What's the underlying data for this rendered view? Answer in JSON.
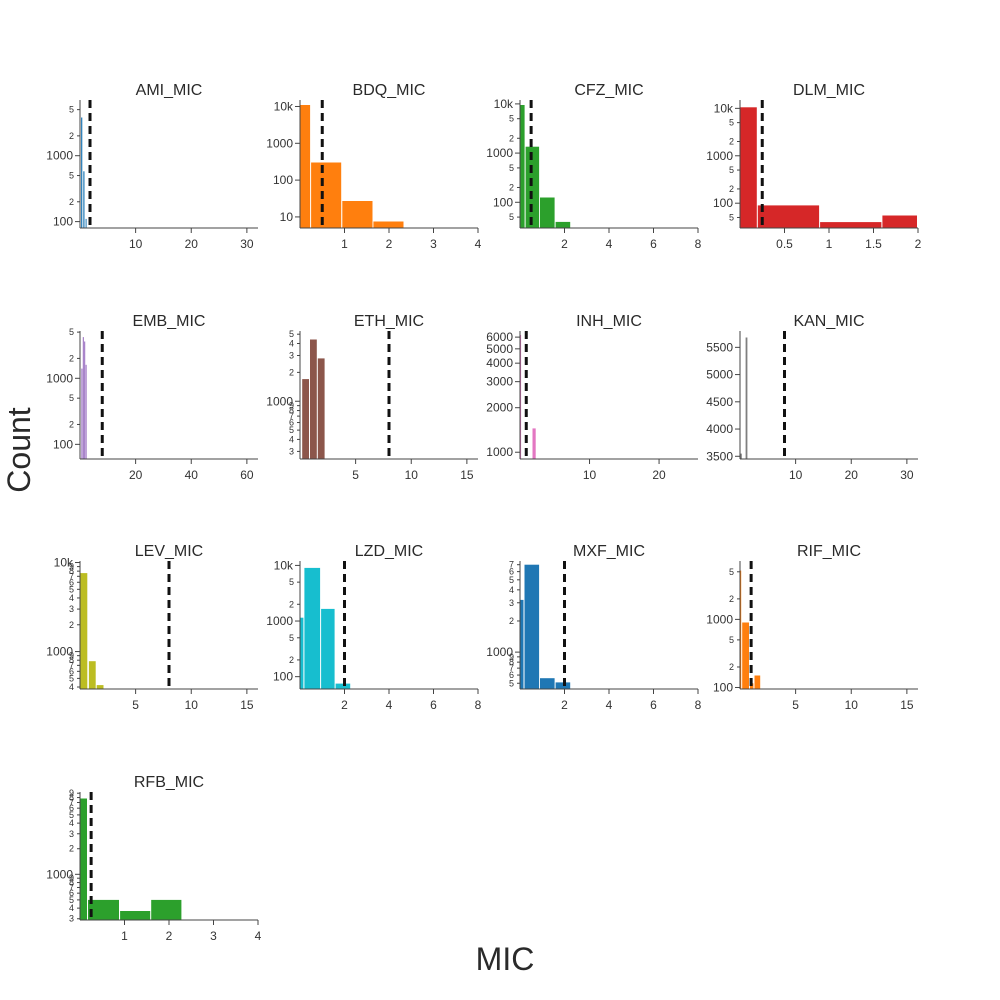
{
  "figure": {
    "xlabel": "MIC",
    "ylabel": "Count"
  },
  "chart_data": [
    {
      "type": "bar",
      "title": "AMI_MIC",
      "color": "#1f77b4",
      "ylog": true,
      "xlim": [
        0,
        32
      ],
      "xticks": [
        10,
        20,
        30
      ],
      "ylim": [
        80,
        7000
      ],
      "yticks": [
        {
          "v": 100,
          "t": "100",
          "major": true
        },
        {
          "v": 200,
          "t": "2"
        },
        {
          "v": 500,
          "t": "5"
        },
        {
          "v": 1000,
          "t": "1000",
          "major": true
        },
        {
          "v": 2000,
          "t": "2"
        },
        {
          "v": 5000,
          "t": "5"
        }
      ],
      "bins": [
        [
          0.2,
          0.6,
          3800
        ],
        [
          0.6,
          1.0,
          580
        ],
        [
          1.0,
          1.3,
          110
        ]
      ],
      "threshold": 1.8
    },
    {
      "type": "bar",
      "title": "BDQ_MIC",
      "color": "#ff7f0e",
      "ylog": true,
      "xlim": [
        0,
        4
      ],
      "xticks": [
        1,
        2,
        3,
        4
      ],
      "ylim": [
        5,
        15000
      ],
      "yticks": [
        {
          "v": 10,
          "t": "10",
          "major": true
        },
        {
          "v": 100,
          "t": "100",
          "major": true
        },
        {
          "v": 1000,
          "t": "1000",
          "major": true
        },
        {
          "v": 10000,
          "t": "10k",
          "major": true
        }
      ],
      "bins": [
        [
          0.0,
          0.25,
          11000
        ],
        [
          0.25,
          0.95,
          300
        ],
        [
          0.95,
          1.65,
          27
        ],
        [
          1.65,
          2.35,
          7.5
        ]
      ],
      "threshold": 0.5
    },
    {
      "type": "bar",
      "title": "CFZ_MIC",
      "color": "#2ca02c",
      "ylog": true,
      "xlim": [
        0,
        8
      ],
      "xticks": [
        2,
        4,
        6,
        8
      ],
      "ylim": [
        30,
        12000
      ],
      "yticks": [
        {
          "v": 50,
          "t": "5"
        },
        {
          "v": 100,
          "t": "100",
          "major": true
        },
        {
          "v": 200,
          "t": "2"
        },
        {
          "v": 500,
          "t": "5"
        },
        {
          "v": 1000,
          "t": "1000",
          "major": true
        },
        {
          "v": 2000,
          "t": "2"
        },
        {
          "v": 5000,
          "t": "5"
        },
        {
          "v": 10000,
          "t": "10k",
          "major": true
        }
      ],
      "bins": [
        [
          0.0,
          0.25,
          9500
        ],
        [
          0.25,
          0.9,
          1350
        ],
        [
          0.9,
          1.6,
          125
        ],
        [
          1.6,
          2.3,
          40
        ]
      ],
      "threshold": 0.5
    },
    {
      "type": "bar",
      "title": "DLM_MIC",
      "color": "#d62728",
      "ylog": true,
      "xlim": [
        0,
        2
      ],
      "xticks": [
        0.5,
        1,
        1.5,
        2
      ],
      "ylim": [
        30,
        15000
      ],
      "yticks": [
        {
          "v": 50,
          "t": "5"
        },
        {
          "v": 100,
          "t": "100",
          "major": true
        },
        {
          "v": 200,
          "t": "2"
        },
        {
          "v": 500,
          "t": "5"
        },
        {
          "v": 1000,
          "t": "1000",
          "major": true
        },
        {
          "v": 2000,
          "t": "2"
        },
        {
          "v": 5000,
          "t": "5"
        },
        {
          "v": 10000,
          "t": "10k",
          "major": true
        }
      ],
      "bins": [
        [
          0.0,
          0.2,
          10500
        ],
        [
          0.2,
          0.9,
          90
        ],
        [
          0.9,
          1.6,
          40
        ],
        [
          1.6,
          2.0,
          55
        ]
      ],
      "threshold": 0.25
    },
    {
      "type": "bar",
      "title": "EMB_MIC",
      "color": "#9467bd",
      "ylog": true,
      "xlim": [
        0,
        64
      ],
      "xticks": [
        20,
        40,
        60
      ],
      "ylim": [
        60,
        5200
      ],
      "yticks": [
        {
          "v": 100,
          "t": "100",
          "major": true
        },
        {
          "v": 200,
          "t": "2"
        },
        {
          "v": 500,
          "t": "5"
        },
        {
          "v": 1000,
          "t": "1000",
          "major": true
        },
        {
          "v": 2000,
          "t": "2"
        },
        {
          "v": 5000,
          "t": "5"
        }
      ],
      "bins": [
        [
          0.5,
          1.0,
          1400
        ],
        [
          1.0,
          1.5,
          4200
        ],
        [
          1.5,
          2.0,
          3600
        ],
        [
          2.0,
          2.4,
          1600
        ]
      ],
      "threshold": 8
    },
    {
      "type": "bar",
      "title": "ETH_MIC",
      "color": "#8c564b",
      "ylog": true,
      "xlim": [
        0,
        16
      ],
      "xticks": [
        5,
        10,
        15
      ],
      "ylim": [
        250,
        5400
      ],
      "yticks": [
        {
          "v": 300,
          "t": "3"
        },
        {
          "v": 400,
          "t": "4"
        },
        {
          "v": 500,
          "t": "5"
        },
        {
          "v": 600,
          "t": "6"
        },
        {
          "v": 700,
          "t": "7"
        },
        {
          "v": 800,
          "t": "8"
        },
        {
          "v": 900,
          "t": "9"
        },
        {
          "v": 1000,
          "t": "1000",
          "major": true
        },
        {
          "v": 2000,
          "t": "2"
        },
        {
          "v": 3000,
          "t": "3"
        },
        {
          "v": 4000,
          "t": "4"
        },
        {
          "v": 5000,
          "t": "5"
        }
      ],
      "bins": [
        [
          0.2,
          0.9,
          1700
        ],
        [
          0.9,
          1.6,
          4400
        ],
        [
          1.6,
          2.3,
          2800
        ]
      ],
      "threshold": 8
    },
    {
      "type": "bar",
      "title": "INH_MIC",
      "color": "#e377c2",
      "ylog": true,
      "xlim": [
        0,
        25.6
      ],
      "xticks": [
        10,
        20
      ],
      "ylim": [
        900,
        6600
      ],
      "yticks": [
        {
          "v": 1000,
          "t": "1000",
          "major": true
        },
        {
          "v": 2000,
          "t": "2000",
          "major": true
        },
        {
          "v": 3000,
          "t": "3000",
          "major": true
        },
        {
          "v": 4000,
          "t": "4000",
          "major": true
        },
        {
          "v": 5000,
          "t": "5000",
          "major": true
        },
        {
          "v": 6000,
          "t": "6000",
          "major": true
        }
      ],
      "bins": [
        [
          0.0,
          0.3,
          6200
        ],
        [
          1.8,
          2.4,
          1450
        ]
      ],
      "threshold": 0.9
    },
    {
      "type": "bar",
      "title": "KAN_MIC",
      "color": "#7f7f7f",
      "ylog": false,
      "xlim": [
        0,
        32
      ],
      "xticks": [
        10,
        20,
        30
      ],
      "ylim": [
        3450,
        5800
      ],
      "yticks": [
        {
          "v": 3500,
          "t": "3500",
          "major": true
        },
        {
          "v": 4000,
          "t": "4000",
          "major": true
        },
        {
          "v": 4500,
          "t": "4500",
          "major": true
        },
        {
          "v": 5000,
          "t": "5000",
          "major": true
        },
        {
          "v": 5500,
          "t": "5500",
          "major": true
        }
      ],
      "bins": [
        [
          0.0,
          0.5,
          3550
        ],
        [
          1.0,
          1.5,
          5680
        ]
      ],
      "threshold": 8
    },
    {
      "type": "bar",
      "title": "LEV_MIC",
      "color": "#bcbd22",
      "ylog": true,
      "xlim": [
        0,
        16
      ],
      "xticks": [
        5,
        10,
        15
      ],
      "ylim": [
        380,
        10400
      ],
      "yticks": [
        {
          "v": 400,
          "t": "4"
        },
        {
          "v": 500,
          "t": "5"
        },
        {
          "v": 600,
          "t": "6"
        },
        {
          "v": 700,
          "t": "7"
        },
        {
          "v": 800,
          "t": "8"
        },
        {
          "v": 900,
          "t": "9"
        },
        {
          "v": 1000,
          "t": "1000",
          "major": true
        },
        {
          "v": 2000,
          "t": "2"
        },
        {
          "v": 3000,
          "t": "3"
        },
        {
          "v": 4000,
          "t": "4"
        },
        {
          "v": 5000,
          "t": "5"
        },
        {
          "v": 6000,
          "t": "6"
        },
        {
          "v": 7000,
          "t": "7"
        },
        {
          "v": 8000,
          "t": "8"
        },
        {
          "v": 9000,
          "t": "9"
        },
        {
          "v": 10000,
          "t": "10k",
          "major": true
        }
      ],
      "bins": [
        [
          0.0,
          0.75,
          7600
        ],
        [
          0.8,
          1.5,
          780
        ],
        [
          1.5,
          2.2,
          420
        ]
      ],
      "threshold": 8
    },
    {
      "type": "bar",
      "title": "LZD_MIC",
      "color": "#17becf",
      "ylog": true,
      "xlim": [
        0,
        8
      ],
      "xticks": [
        2,
        4,
        6,
        8
      ],
      "ylim": [
        60,
        12000
      ],
      "yticks": [
        {
          "v": 100,
          "t": "100",
          "major": true
        },
        {
          "v": 200,
          "t": "2"
        },
        {
          "v": 500,
          "t": "5"
        },
        {
          "v": 1000,
          "t": "1000",
          "major": true
        },
        {
          "v": 2000,
          "t": "2"
        },
        {
          "v": 5000,
          "t": "5"
        },
        {
          "v": 10000,
          "t": "10k",
          "major": true
        }
      ],
      "bins": [
        [
          0.0,
          0.2,
          1150
        ],
        [
          0.2,
          0.95,
          9000
        ],
        [
          0.95,
          1.6,
          1650
        ],
        [
          1.6,
          2.3,
          75
        ]
      ],
      "threshold": 2
    },
    {
      "type": "bar",
      "title": "MXF_MIC",
      "color": "#1f77b4",
      "ylog": true,
      "xlim": [
        0,
        8
      ],
      "xticks": [
        2,
        4,
        6,
        8
      ],
      "ylim": [
        440,
        7600
      ],
      "yticks": [
        {
          "v": 500,
          "t": "5"
        },
        {
          "v": 600,
          "t": "6"
        },
        {
          "v": 700,
          "t": "7"
        },
        {
          "v": 800,
          "t": "8"
        },
        {
          "v": 900,
          "t": "9"
        },
        {
          "v": 1000,
          "t": "1000",
          "major": true
        },
        {
          "v": 2000,
          "t": "2"
        },
        {
          "v": 3000,
          "t": "3"
        },
        {
          "v": 4000,
          "t": "4"
        },
        {
          "v": 5000,
          "t": "5"
        },
        {
          "v": 6000,
          "t": "6"
        },
        {
          "v": 7000,
          "t": "7"
        }
      ],
      "bins": [
        [
          0.0,
          0.2,
          3200
        ],
        [
          0.2,
          0.9,
          7000
        ],
        [
          0.9,
          1.6,
          560
        ],
        [
          1.6,
          2.3,
          510
        ]
      ],
      "threshold": 2
    },
    {
      "type": "bar",
      "title": "RIF_MIC",
      "color": "#ff7f0e",
      "ylog": true,
      "xlim": [
        0,
        16
      ],
      "xticks": [
        5,
        10,
        15
      ],
      "ylim": [
        95,
        7200
      ],
      "yticks": [
        {
          "v": 100,
          "t": "100",
          "major": true
        },
        {
          "v": 200,
          "t": "2"
        },
        {
          "v": 500,
          "t": "5"
        },
        {
          "v": 1000,
          "t": "1000",
          "major": true
        },
        {
          "v": 2000,
          "t": "2"
        },
        {
          "v": 5000,
          "t": "5"
        }
      ],
      "bins": [
        [
          0.0,
          0.2,
          5200
        ],
        [
          0.2,
          0.9,
          900
        ],
        [
          0.9,
          1.3,
          115
        ],
        [
          1.3,
          1.9,
          150
        ]
      ],
      "threshold": 1
    },
    {
      "type": "bar",
      "title": "RFB_MIC",
      "color": "#2ca02c",
      "ylog": true,
      "xlim": [
        0,
        4
      ],
      "xticks": [
        1,
        2,
        3,
        4
      ],
      "ylim": [
        290,
        9300
      ],
      "yticks": [
        {
          "v": 300,
          "t": "3"
        },
        {
          "v": 400,
          "t": "4"
        },
        {
          "v": 500,
          "t": "5"
        },
        {
          "v": 600,
          "t": "6"
        },
        {
          "v": 700,
          "t": "7"
        },
        {
          "v": 800,
          "t": "8"
        },
        {
          "v": 900,
          "t": "9"
        },
        {
          "v": 1000,
          "t": "1000",
          "major": true
        },
        {
          "v": 2000,
          "t": "2"
        },
        {
          "v": 3000,
          "t": "3"
        },
        {
          "v": 4000,
          "t": "4"
        },
        {
          "v": 5000,
          "t": "5"
        },
        {
          "v": 6000,
          "t": "6"
        },
        {
          "v": 7000,
          "t": "7"
        },
        {
          "v": 8000,
          "t": "8"
        },
        {
          "v": 9000,
          "t": "9"
        }
      ],
      "bins": [
        [
          0.0,
          0.18,
          7800
        ],
        [
          0.18,
          0.9,
          500
        ],
        [
          0.9,
          1.6,
          370
        ],
        [
          1.6,
          2.3,
          500
        ]
      ],
      "threshold": 0.25
    }
  ]
}
